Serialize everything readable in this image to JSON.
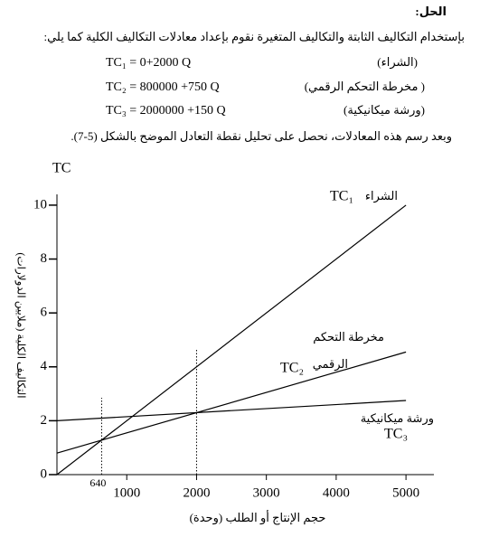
{
  "header": {
    "title": "الحل:"
  },
  "intro": "بإستخدام التكاليف الثابتة والتكاليف المتغيرة نقوم بإعداد معادلات التكاليف الكلية كما يلي:",
  "equations": [
    {
      "formula": "TC₁ = 0+2000 Q",
      "label": "(الشراء)"
    },
    {
      "formula": "TC₂ = 800000 +750 Q",
      "label": "( مخرطة التحكم الرقمي)"
    },
    {
      "formula": "TC₃ = 2000000 +150 Q",
      "label": "(ورشة ميكانيكية)"
    }
  ],
  "conclusion": "وبعد رسم هذه المعادلات، نحصل على تحليل نقطة التعادل الموضح بالشكل (5-7).",
  "chart_data": {
    "type": "line",
    "y_title": "TC",
    "y_label": "التكاليف الكلية (ملايين الدولارات)",
    "x_label": "حجم الإنتاج أو الطلب (وحدة)",
    "x": [
      0,
      5000
    ],
    "series": [
      {
        "name": "TC₁",
        "labels": [
          "الشراء"
        ],
        "color": "#000000",
        "values": [
          0,
          10
        ]
      },
      {
        "name": "TC₂",
        "labels": [
          "مخرطة التحكم",
          "الرقمي"
        ],
        "color": "#000000",
        "values": [
          0.8,
          4.55
        ]
      },
      {
        "name": "TC₃",
        "labels": [
          "ورشة ميكانيكية"
        ],
        "color": "#000000",
        "values": [
          2,
          2.75
        ]
      }
    ],
    "xlim": [
      0,
      5400
    ],
    "ylim": [
      0,
      10.4
    ],
    "xticks": [
      1000,
      2000,
      3000,
      4000,
      5000
    ],
    "yticks": [
      0,
      2,
      4,
      6,
      8,
      10
    ],
    "reference_lines": [
      640,
      2000
    ]
  }
}
